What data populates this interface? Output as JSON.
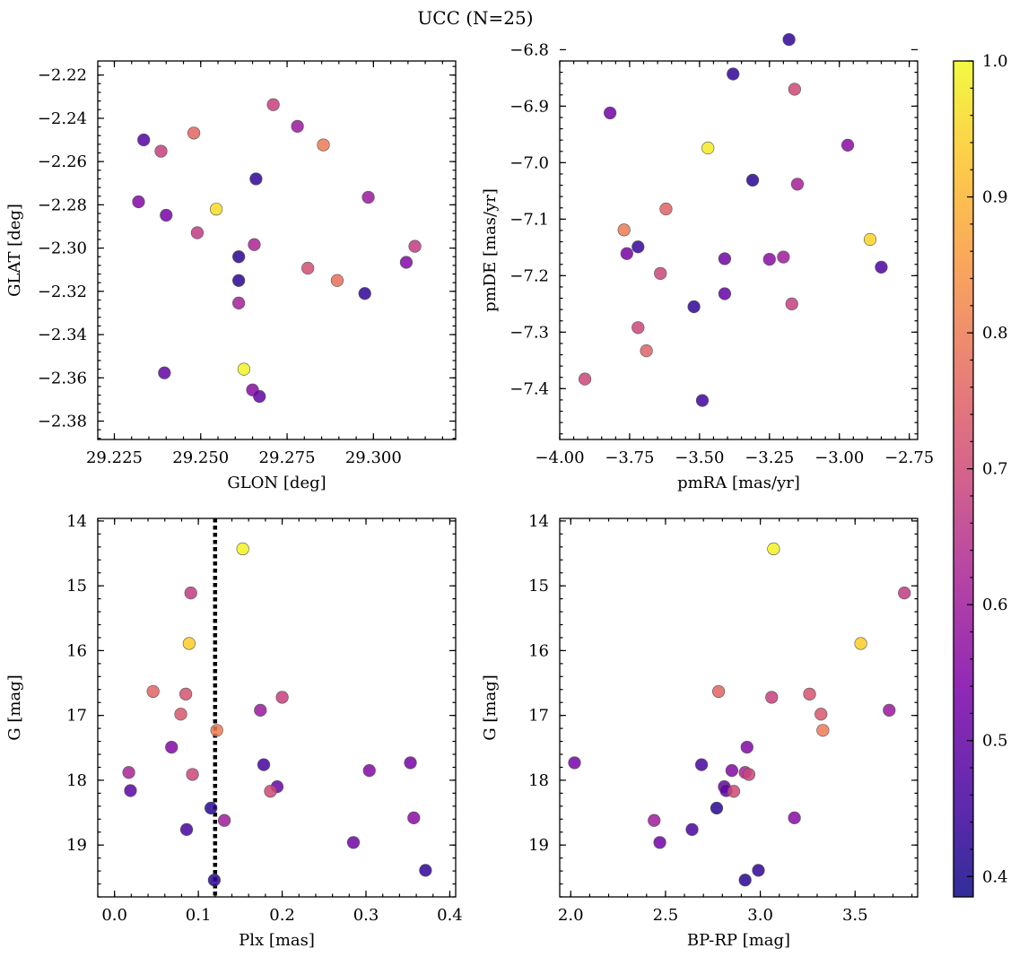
{
  "title": "UCC (N=25)",
  "colorbar": {
    "range": [
      0.385,
      1.0
    ],
    "ticks": [
      0.4,
      0.5,
      0.6,
      0.7,
      0.8,
      0.9,
      1.0
    ],
    "tick_labels": [
      "0.4",
      "0.5",
      "0.6",
      "0.7",
      "0.8",
      "0.9",
      "1.0"
    ],
    "colormap": "plasma"
  },
  "chart_data": [
    {
      "type": "scatter",
      "xlabel": "GLON [deg]",
      "ylabel": "GLAT [deg]",
      "xlim": [
        29.2202,
        29.3238
      ],
      "ylim": [
        -2.3885,
        -2.2135
      ],
      "x_ticks": [
        29.225,
        29.25,
        29.275,
        29.3
      ],
      "x_tick_labels": [
        "29.225",
        "29.250",
        "29.275",
        "29.300"
      ],
      "y_ticks": [
        -2.22,
        -2.24,
        -2.26,
        -2.28,
        -2.3,
        -2.32,
        -2.34,
        -2.36,
        -2.38
      ],
      "y_tick_labels": [
        "−2.22",
        "−2.24",
        "−2.26",
        "−2.28",
        "−2.30",
        "−2.32",
        "−2.34",
        "−2.36",
        "−2.38"
      ],
      "invert_y": false,
      "points": [
        {
          "x": 29.2335,
          "y": -2.25,
          "c": 0.48
        },
        {
          "x": 29.2385,
          "y": -2.2552,
          "c": 0.68
        },
        {
          "x": 29.248,
          "y": -2.2468,
          "c": 0.76
        },
        {
          "x": 29.232,
          "y": -2.2786,
          "c": 0.55
        },
        {
          "x": 29.24,
          "y": -2.2848,
          "c": 0.53
        },
        {
          "x": 29.249,
          "y": -2.2929,
          "c": 0.67
        },
        {
          "x": 29.2545,
          "y": -2.282,
          "c": 0.96
        },
        {
          "x": 29.2395,
          "y": -2.3577,
          "c": 0.5
        },
        {
          "x": 29.2625,
          "y": -2.356,
          "c": 0.99
        },
        {
          "x": 29.265,
          "y": -2.3656,
          "c": 0.56
        },
        {
          "x": 29.267,
          "y": -2.3686,
          "c": 0.5
        },
        {
          "x": 29.261,
          "y": -2.304,
          "c": 0.42
        },
        {
          "x": 29.261,
          "y": -2.315,
          "c": 0.42
        },
        {
          "x": 29.261,
          "y": -2.3254,
          "c": 0.61
        },
        {
          "x": 29.2655,
          "y": -2.2984,
          "c": 0.62
        },
        {
          "x": 29.266,
          "y": -2.268,
          "c": 0.43
        },
        {
          "x": 29.271,
          "y": -2.2337,
          "c": 0.68
        },
        {
          "x": 29.278,
          "y": -2.2437,
          "c": 0.59
        },
        {
          "x": 29.281,
          "y": -2.3093,
          "c": 0.71
        },
        {
          "x": 29.2855,
          "y": -2.2523,
          "c": 0.8
        },
        {
          "x": 29.2895,
          "y": -2.315,
          "c": 0.78
        },
        {
          "x": 29.2975,
          "y": -2.321,
          "c": 0.43
        },
        {
          "x": 29.2985,
          "y": -2.2765,
          "c": 0.59
        },
        {
          "x": 29.3095,
          "y": -2.3066,
          "c": 0.55
        },
        {
          "x": 29.312,
          "y": -2.2992,
          "c": 0.67
        }
      ]
    },
    {
      "type": "scatter",
      "xlabel": "pmRA [mas/yr]",
      "ylabel": "pmDE [mas/yr]",
      "xlim": [
        -4.0,
        -2.72
      ],
      "ylim": [
        -7.49,
        -6.82
      ],
      "x_ticks": [
        -4.0,
        -3.75,
        -3.5,
        -3.25,
        -3.0,
        -2.75
      ],
      "x_tick_labels": [
        "−4.00",
        "−3.75",
        "−3.50",
        "−3.25",
        "−3.00",
        "−2.75"
      ],
      "y_ticks": [
        -6.8,
        -6.9,
        -7.0,
        -7.1,
        -7.2,
        -7.3,
        -7.4
      ],
      "y_tick_labels": [
        "−6.8",
        "−6.9",
        "−7.0",
        "−7.1",
        "−7.2",
        "−7.3",
        "−7.4"
      ],
      "invert_y": false,
      "points": [
        {
          "x": -3.18,
          "y": -6.782,
          "c": 0.43
        },
        {
          "x": -3.38,
          "y": -6.843,
          "c": 0.43
        },
        {
          "x": -3.16,
          "y": -6.87,
          "c": 0.7
        },
        {
          "x": -3.82,
          "y": -6.912,
          "c": 0.52
        },
        {
          "x": -3.47,
          "y": -6.974,
          "c": 0.98
        },
        {
          "x": -2.97,
          "y": -6.969,
          "c": 0.56
        },
        {
          "x": -3.31,
          "y": -7.031,
          "c": 0.42
        },
        {
          "x": -3.15,
          "y": -7.038,
          "c": 0.61
        },
        {
          "x": -3.62,
          "y": -7.082,
          "c": 0.75
        },
        {
          "x": -3.77,
          "y": -7.119,
          "c": 0.8
        },
        {
          "x": -2.89,
          "y": -7.136,
          "c": 0.95
        },
        {
          "x": -3.72,
          "y": -7.149,
          "c": 0.44
        },
        {
          "x": -3.76,
          "y": -7.161,
          "c": 0.53
        },
        {
          "x": -3.41,
          "y": -7.17,
          "c": 0.52
        },
        {
          "x": -3.25,
          "y": -7.171,
          "c": 0.56
        },
        {
          "x": -3.2,
          "y": -7.167,
          "c": 0.6
        },
        {
          "x": -2.85,
          "y": -7.185,
          "c": 0.47
        },
        {
          "x": -3.64,
          "y": -7.196,
          "c": 0.69
        },
        {
          "x": -3.41,
          "y": -7.232,
          "c": 0.5
        },
        {
          "x": -3.17,
          "y": -7.25,
          "c": 0.68
        },
        {
          "x": -3.52,
          "y": -7.255,
          "c": 0.43
        },
        {
          "x": -3.72,
          "y": -7.292,
          "c": 0.69
        },
        {
          "x": -3.69,
          "y": -7.333,
          "c": 0.75
        },
        {
          "x": -3.91,
          "y": -7.383,
          "c": 0.69
        },
        {
          "x": -3.49,
          "y": -7.421,
          "c": 0.45
        }
      ]
    },
    {
      "type": "scatter",
      "xlabel": "Plx [mas]",
      "ylabel": "G [mag]",
      "xlim": [
        -0.02,
        0.407
      ],
      "ylim": [
        19.8,
        13.96
      ],
      "x_ticks": [
        0.0,
        0.1,
        0.2,
        0.3,
        0.4
      ],
      "x_tick_labels": [
        "0.0",
        "0.1",
        "0.2",
        "0.3",
        "0.4"
      ],
      "y_ticks": [
        14,
        15,
        16,
        17,
        18,
        19
      ],
      "y_tick_labels": [
        "14",
        "15",
        "16",
        "17",
        "18",
        "19"
      ],
      "invert_y": true,
      "vline": 0.12,
      "points": [
        {
          "x": 0.153,
          "y": 14.43,
          "c": 0.99
        },
        {
          "x": 0.091,
          "y": 15.11,
          "c": 0.67
        },
        {
          "x": 0.089,
          "y": 15.89,
          "c": 0.94
        },
        {
          "x": 0.046,
          "y": 16.63,
          "c": 0.76
        },
        {
          "x": 0.085,
          "y": 16.67,
          "c": 0.72
        },
        {
          "x": 0.079,
          "y": 16.98,
          "c": 0.73
        },
        {
          "x": 0.2,
          "y": 16.72,
          "c": 0.68
        },
        {
          "x": 0.174,
          "y": 16.92,
          "c": 0.59
        },
        {
          "x": 0.122,
          "y": 17.23,
          "c": 0.8
        },
        {
          "x": 0.068,
          "y": 17.49,
          "c": 0.55
        },
        {
          "x": 0.178,
          "y": 17.76,
          "c": 0.46
        },
        {
          "x": 0.353,
          "y": 17.73,
          "c": 0.53
        },
        {
          "x": 0.017,
          "y": 17.88,
          "c": 0.62
        },
        {
          "x": 0.093,
          "y": 17.91,
          "c": 0.69
        },
        {
          "x": 0.304,
          "y": 17.85,
          "c": 0.55
        },
        {
          "x": 0.194,
          "y": 18.1,
          "c": 0.51
        },
        {
          "x": 0.019,
          "y": 18.16,
          "c": 0.49
        },
        {
          "x": 0.186,
          "y": 18.17,
          "c": 0.7
        },
        {
          "x": 0.115,
          "y": 18.43,
          "c": 0.42
        },
        {
          "x": 0.357,
          "y": 18.58,
          "c": 0.56
        },
        {
          "x": 0.131,
          "y": 18.62,
          "c": 0.6
        },
        {
          "x": 0.086,
          "y": 18.76,
          "c": 0.46
        },
        {
          "x": 0.285,
          "y": 18.96,
          "c": 0.52
        },
        {
          "x": 0.371,
          "y": 19.39,
          "c": 0.43
        },
        {
          "x": 0.119,
          "y": 19.54,
          "c": 0.42
        }
      ]
    },
    {
      "type": "scatter",
      "xlabel": "BP-RP [mag]",
      "ylabel": "G [mag]",
      "xlim": [
        1.942,
        3.83
      ],
      "ylim": [
        19.8,
        13.96
      ],
      "x_ticks": [
        2.0,
        2.5,
        3.0,
        3.5
      ],
      "x_tick_labels": [
        "2.0",
        "2.5",
        "3.0",
        "3.5"
      ],
      "y_ticks": [
        14,
        15,
        16,
        17,
        18,
        19
      ],
      "y_tick_labels": [
        "14",
        "15",
        "16",
        "17",
        "18",
        "19"
      ],
      "invert_y": true,
      "points": [
        {
          "x": 3.07,
          "y": 14.43,
          "c": 0.99
        },
        {
          "x": 3.76,
          "y": 15.11,
          "c": 0.67
        },
        {
          "x": 3.53,
          "y": 15.89,
          "c": 0.94
        },
        {
          "x": 2.78,
          "y": 16.63,
          "c": 0.76
        },
        {
          "x": 3.26,
          "y": 16.67,
          "c": 0.72
        },
        {
          "x": 3.32,
          "y": 16.98,
          "c": 0.73
        },
        {
          "x": 3.06,
          "y": 16.72,
          "c": 0.68
        },
        {
          "x": 3.68,
          "y": 16.92,
          "c": 0.59
        },
        {
          "x": 3.33,
          "y": 17.23,
          "c": 0.8
        },
        {
          "x": 2.93,
          "y": 17.49,
          "c": 0.55
        },
        {
          "x": 2.69,
          "y": 17.76,
          "c": 0.46
        },
        {
          "x": 2.02,
          "y": 17.73,
          "c": 0.53
        },
        {
          "x": 2.85,
          "y": 17.85,
          "c": 0.55
        },
        {
          "x": 2.92,
          "y": 17.88,
          "c": 0.62
        },
        {
          "x": 2.94,
          "y": 17.91,
          "c": 0.69
        },
        {
          "x": 2.81,
          "y": 18.1,
          "c": 0.51
        },
        {
          "x": 2.82,
          "y": 18.16,
          "c": 0.49
        },
        {
          "x": 2.86,
          "y": 18.17,
          "c": 0.7
        },
        {
          "x": 2.77,
          "y": 18.43,
          "c": 0.42
        },
        {
          "x": 3.18,
          "y": 18.58,
          "c": 0.56
        },
        {
          "x": 2.44,
          "y": 18.62,
          "c": 0.6
        },
        {
          "x": 2.64,
          "y": 18.76,
          "c": 0.46
        },
        {
          "x": 2.47,
          "y": 18.96,
          "c": 0.52
        },
        {
          "x": 2.99,
          "y": 19.39,
          "c": 0.43
        },
        {
          "x": 2.92,
          "y": 19.54,
          "c": 0.42
        }
      ]
    }
  ]
}
